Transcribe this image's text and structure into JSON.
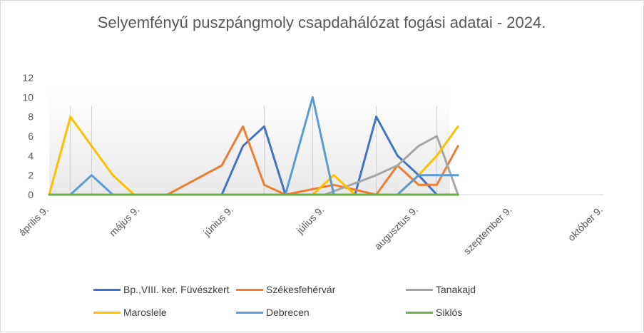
{
  "chart_data": {
    "type": "line",
    "title": "Selyemfényű puszpángmoly csapdahálózat fogási adatai - 2024.",
    "xlabel": "",
    "ylabel": "",
    "ylim": [
      0,
      12
    ],
    "yticks": [
      "0",
      "2",
      "4",
      "6",
      "8",
      "10",
      "12"
    ],
    "xlim_days_from_apr9": [
      0,
      183
    ],
    "xtick_labels": [
      "április 9.",
      "május 9.",
      "június 9.",
      "július 9.",
      "augusztus 9.",
      "szeptember 9.",
      "október 9."
    ],
    "xtick_dates": [
      "2024-04-09",
      "2024-05-09",
      "2024-06-09",
      "2024-07-09",
      "2024-08-09",
      "2024-09-09",
      "2024-10-09"
    ],
    "legend_position": "bottom",
    "grid": false,
    "series": [
      {
        "name": "Bp.,VIII. ker. Füvészkert",
        "color": "#4472c4",
        "points": [
          [
            "2024-06-05",
            0
          ],
          [
            "2024-06-12",
            5
          ],
          [
            "2024-06-19",
            7
          ],
          [
            "2024-06-26",
            0
          ],
          [
            "2024-07-19",
            0
          ],
          [
            "2024-07-26",
            8
          ],
          [
            "2024-08-02",
            4
          ],
          [
            "2024-08-09",
            2
          ],
          [
            "2024-08-15",
            0
          ]
        ]
      },
      {
        "name": "Székesfehérvár",
        "color": "#ed7d31",
        "points": [
          [
            "2024-05-18",
            0
          ],
          [
            "2024-06-05",
            3
          ],
          [
            "2024-06-12",
            7
          ],
          [
            "2024-06-19",
            1
          ],
          [
            "2024-06-26",
            0
          ],
          [
            "2024-07-12",
            1
          ],
          [
            "2024-07-26",
            0
          ],
          [
            "2024-08-02",
            3
          ],
          [
            "2024-08-09",
            1
          ],
          [
            "2024-08-15",
            1
          ],
          [
            "2024-08-22",
            5
          ]
        ]
      },
      {
        "name": "Tanakajd",
        "color": "#a5a5a5",
        "points": [
          [
            "2024-07-09",
            0
          ],
          [
            "2024-07-26",
            2
          ],
          [
            "2024-08-02",
            3
          ],
          [
            "2024-08-09",
            5
          ],
          [
            "2024-08-15",
            6
          ],
          [
            "2024-08-22",
            0
          ]
        ]
      },
      {
        "name": "Maroslele",
        "color": "#ffc000",
        "points": [
          [
            "2024-04-09",
            0
          ],
          [
            "2024-04-16",
            8
          ],
          [
            "2024-04-23",
            5
          ],
          [
            "2024-04-30",
            2
          ],
          [
            "2024-05-07",
            0
          ],
          [
            "2024-06-26",
            0
          ],
          [
            "2024-07-05",
            0
          ],
          [
            "2024-07-12",
            2
          ],
          [
            "2024-07-19",
            0
          ],
          [
            "2024-08-02",
            0
          ],
          [
            "2024-08-09",
            2
          ],
          [
            "2024-08-15",
            4
          ],
          [
            "2024-08-22",
            7
          ]
        ]
      },
      {
        "name": "Debrecen",
        "color": "#5b9bd5",
        "points": [
          [
            "2024-04-16",
            0
          ],
          [
            "2024-04-23",
            2
          ],
          [
            "2024-04-30",
            0
          ],
          [
            "2024-06-26",
            0
          ],
          [
            "2024-07-05",
            10
          ],
          [
            "2024-07-12",
            0
          ],
          [
            "2024-08-02",
            0
          ],
          [
            "2024-08-09",
            2
          ],
          [
            "2024-08-15",
            2
          ],
          [
            "2024-08-22",
            2
          ]
        ]
      },
      {
        "name": "Siklós",
        "color": "#70ad47",
        "points": [
          [
            "2024-04-09",
            0
          ],
          [
            "2024-08-22",
            0
          ]
        ]
      }
    ],
    "drop_lines": [
      "2024-04-16",
      "2024-04-23",
      "2024-06-19",
      "2024-07-05",
      "2024-07-26",
      "2024-08-15"
    ]
  }
}
